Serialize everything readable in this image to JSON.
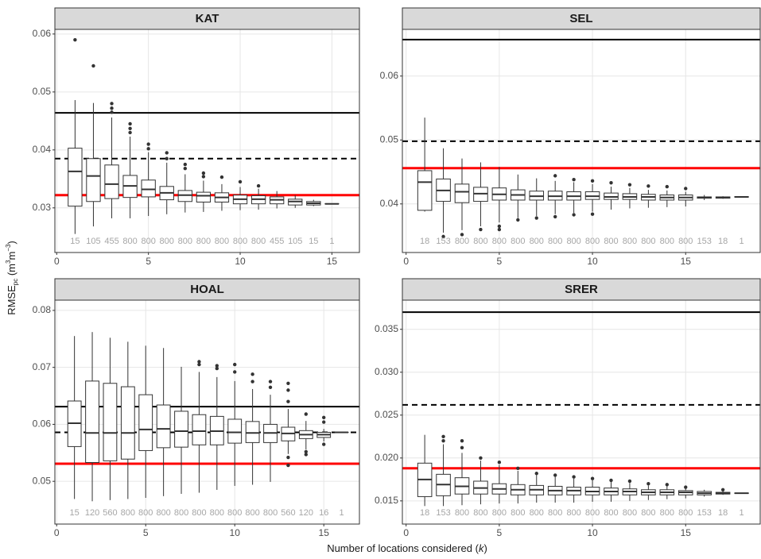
{
  "axis_labels": {
    "x_main": "Number of locations considered (",
    "x_var": "k",
    "x_close": ")",
    "y_main": "RMSE",
    "y_sub": "pc",
    "y_open": " (m",
    "y_exp1": "3",
    "y_mid": "m",
    "y_exp2": "−3",
    "y_close": ")"
  },
  "chart_data": [
    {
      "type": "boxplot",
      "title": "KAT",
      "xlim": [
        -0.1,
        16.5
      ],
      "xticks": [
        0,
        5,
        10,
        15
      ],
      "ylim": [
        0.0223,
        0.0608
      ],
      "yticks": [
        0.03,
        0.04,
        0.05,
        0.06
      ],
      "grid": true,
      "x": [
        1,
        2,
        3,
        4,
        5,
        6,
        7,
        8,
        9,
        10,
        11,
        12,
        13,
        14,
        15
      ],
      "counts": [
        15,
        105,
        455,
        800,
        800,
        800,
        800,
        800,
        800,
        800,
        800,
        455,
        105,
        15,
        1
      ],
      "low": [
        0.0255,
        0.0268,
        0.0282,
        0.0282,
        0.0286,
        0.0289,
        0.0292,
        0.0293,
        0.0295,
        0.0296,
        0.0297,
        0.0299,
        0.03,
        0.0303,
        0.0307
      ],
      "q1": [
        0.0303,
        0.0311,
        0.0316,
        0.0318,
        0.0319,
        0.0314,
        0.0311,
        0.031,
        0.031,
        0.0307,
        0.0307,
        0.0307,
        0.0305,
        0.0305,
        0.0307
      ],
      "median": [
        0.0363,
        0.0355,
        0.0341,
        0.0338,
        0.0332,
        0.0326,
        0.0322,
        0.0321,
        0.0318,
        0.0315,
        0.0315,
        0.0314,
        0.0311,
        0.0308,
        0.0307
      ],
      "q3": [
        0.0403,
        0.0385,
        0.0374,
        0.0356,
        0.0348,
        0.0337,
        0.033,
        0.0327,
        0.0326,
        0.0322,
        0.0321,
        0.0319,
        0.0315,
        0.0311,
        0.0307
      ],
      "high": [
        0.0486,
        0.0481,
        0.0456,
        0.0423,
        0.0396,
        0.0378,
        0.0358,
        0.0347,
        0.0341,
        0.0336,
        0.0333,
        0.0329,
        0.0322,
        0.0314,
        0.0307
      ],
      "outliers": [
        [
          0.059
        ],
        [
          0.0545
        ],
        [
          0.0465,
          0.0472,
          0.048
        ],
        [
          0.043,
          0.0437,
          0.0445
        ],
        [
          0.0402,
          0.041
        ],
        [
          0.0385,
          0.0395
        ],
        [
          0.0368,
          0.0375
        ],
        [
          0.0354,
          0.036
        ],
        [
          0.0353
        ],
        [
          0.0345
        ],
        [
          0.0338
        ],
        [],
        [],
        [],
        []
      ],
      "hlines": [
        {
          "value": 0.0464,
          "style": "solid",
          "color": "#000000"
        },
        {
          "value": 0.0385,
          "style": "dashed",
          "color": "#000000"
        },
        {
          "value": 0.0322,
          "style": "solid",
          "color": "#ff0000"
        }
      ]
    },
    {
      "type": "boxplot",
      "title": "SEL",
      "xlim": [
        -0.2,
        19
      ],
      "xticks": [
        0,
        5,
        10,
        15
      ],
      "ylim": [
        0.0324,
        0.0673
      ],
      "yticks": [
        0.04,
        0.05,
        0.06
      ],
      "grid": true,
      "x": [
        1,
        2,
        3,
        4,
        5,
        6,
        7,
        8,
        9,
        10,
        11,
        12,
        13,
        14,
        15,
        16,
        17,
        18
      ],
      "counts": [
        18,
        153,
        800,
        800,
        800,
        800,
        800,
        800,
        800,
        800,
        800,
        800,
        800,
        800,
        800,
        153,
        18,
        1
      ],
      "low": [
        0.0388,
        0.0355,
        0.0359,
        0.0365,
        0.0371,
        0.0378,
        0.0381,
        0.0384,
        0.0386,
        0.0388,
        0.0391,
        0.0393,
        0.0394,
        0.0395,
        0.0396,
        0.0406,
        0.0408,
        0.0411
      ],
      "q1": [
        0.039,
        0.0404,
        0.0402,
        0.0404,
        0.0406,
        0.0406,
        0.0406,
        0.0406,
        0.0406,
        0.0407,
        0.0407,
        0.0407,
        0.0406,
        0.0406,
        0.0406,
        0.0409,
        0.0409,
        0.0411
      ],
      "median": [
        0.0434,
        0.0421,
        0.0419,
        0.0416,
        0.0415,
        0.0414,
        0.0412,
        0.0412,
        0.0412,
        0.0412,
        0.0411,
        0.0411,
        0.0411,
        0.041,
        0.041,
        0.041,
        0.041,
        0.0411
      ],
      "q3": [
        0.0452,
        0.0439,
        0.0431,
        0.0426,
        0.0425,
        0.0422,
        0.042,
        0.042,
        0.0419,
        0.0419,
        0.0417,
        0.0416,
        0.0415,
        0.0414,
        0.0414,
        0.0411,
        0.0411,
        0.0411
      ],
      "high": [
        0.0535,
        0.0487,
        0.0471,
        0.0465,
        0.0458,
        0.0446,
        0.044,
        0.0436,
        0.0434,
        0.0431,
        0.0427,
        0.0425,
        0.0422,
        0.0421,
        0.0419,
        0.0414,
        0.0412,
        0.0411
      ],
      "outliers": [
        [],
        [
          0.0349
        ],
        [
          0.0352
        ],
        [
          0.036
        ],
        [
          0.036,
          0.0365
        ],
        [
          0.0375
        ],
        [
          0.0378
        ],
        [
          0.038,
          0.0444
        ],
        [
          0.0383,
          0.0438
        ],
        [
          0.0384,
          0.0436
        ],
        [
          0.0433
        ],
        [
          0.043
        ],
        [
          0.0428
        ],
        [
          0.0427
        ],
        [
          0.0424
        ],
        [],
        [],
        []
      ],
      "hlines": [
        {
          "value": 0.0657,
          "style": "solid",
          "color": "#000000"
        },
        {
          "value": 0.0498,
          "style": "dashed",
          "color": "#000000"
        },
        {
          "value": 0.0456,
          "style": "solid",
          "color": "#ff0000"
        }
      ]
    },
    {
      "type": "boxplot",
      "title": "HOAL",
      "xlim": [
        -0.1,
        17
      ],
      "xticks": [
        0,
        5,
        10,
        15
      ],
      "ylim": [
        0.0425,
        0.0818
      ],
      "yticks": [
        0.05,
        0.06,
        0.07,
        0.08
      ],
      "grid": true,
      "x": [
        1,
        2,
        3,
        4,
        5,
        6,
        7,
        8,
        9,
        10,
        11,
        12,
        13,
        14,
        15,
        16
      ],
      "counts": [
        15,
        120,
        560,
        800,
        800,
        800,
        800,
        800,
        800,
        800,
        800,
        800,
        560,
        120,
        16,
        1
      ],
      "low": [
        0.0469,
        0.0465,
        0.0467,
        0.0469,
        0.0471,
        0.0474,
        0.0478,
        0.048,
        0.0485,
        0.0492,
        0.0494,
        0.0499,
        0.0548,
        0.0556,
        0.057,
        0.0586
      ],
      "q1": [
        0.0561,
        0.0533,
        0.0536,
        0.0539,
        0.0554,
        0.0559,
        0.056,
        0.0564,
        0.0564,
        0.0567,
        0.0568,
        0.0568,
        0.0571,
        0.0575,
        0.0577,
        0.0586
      ],
      "median": [
        0.0602,
        0.0585,
        0.0585,
        0.0585,
        0.0591,
        0.0592,
        0.0588,
        0.0588,
        0.0588,
        0.0586,
        0.0585,
        0.0585,
        0.0584,
        0.0582,
        0.0582,
        0.0586
      ],
      "q3": [
        0.0641,
        0.0676,
        0.0672,
        0.0666,
        0.0652,
        0.0634,
        0.0623,
        0.0617,
        0.0614,
        0.0609,
        0.0605,
        0.06,
        0.0595,
        0.0589,
        0.0586,
        0.0586
      ],
      "high": [
        0.0755,
        0.0762,
        0.0752,
        0.0745,
        0.0738,
        0.0734,
        0.0701,
        0.0692,
        0.0683,
        0.0676,
        0.0662,
        0.0652,
        0.0627,
        0.0606,
        0.0592,
        0.0586
      ],
      "outliers": [
        [],
        [],
        [],
        [],
        [],
        [],
        [],
        [
          0.0705,
          0.071
        ],
        [
          0.0698,
          0.0703
        ],
        [
          0.0692,
          0.0705
        ],
        [
          0.0675,
          0.0688
        ],
        [
          0.0665,
          0.0675
        ],
        [
          0.064,
          0.066,
          0.0672,
          0.0528,
          0.0542
        ],
        [
          0.0618,
          0.0547,
          0.0552
        ],
        [
          0.0604,
          0.0612,
          0.0565
        ],
        []
      ],
      "hlines": [
        {
          "value": 0.0631,
          "style": "solid",
          "color": "#000000"
        },
        {
          "value": 0.0586,
          "style": "dashed",
          "color": "#000000"
        },
        {
          "value": 0.0531,
          "style": "solid",
          "color": "#ff0000"
        }
      ]
    },
    {
      "type": "boxplot",
      "title": "SRER",
      "xlim": [
        -0.2,
        19
      ],
      "xticks": [
        0,
        5,
        10,
        15
      ],
      "ylim": [
        0.0123,
        0.0384
      ],
      "yticks": [
        0.015,
        {
          "value": 0.02,
          "label": "0.020"
        },
        0.025,
        {
          "value": 0.03,
          "label": "0.030"
        },
        0.035
      ],
      "grid": true,
      "x": [
        1,
        2,
        3,
        4,
        5,
        6,
        7,
        8,
        9,
        10,
        11,
        12,
        13,
        14,
        15,
        16,
        17,
        18
      ],
      "counts": [
        18,
        153,
        800,
        800,
        800,
        800,
        800,
        800,
        800,
        800,
        800,
        800,
        800,
        800,
        800,
        153,
        18,
        1
      ],
      "low": [
        0.0144,
        0.0144,
        0.0145,
        0.0146,
        0.0147,
        0.0147,
        0.0148,
        0.0148,
        0.0148,
        0.0149,
        0.0149,
        0.015,
        0.0151,
        0.0152,
        0.0153,
        0.0155,
        0.0157,
        0.0159
      ],
      "q1": [
        0.0155,
        0.0156,
        0.0158,
        0.0158,
        0.0158,
        0.0157,
        0.0157,
        0.0157,
        0.0157,
        0.0157,
        0.0157,
        0.0157,
        0.0157,
        0.0157,
        0.0157,
        0.0157,
        0.0158,
        0.0159
      ],
      "median": [
        0.0175,
        0.0169,
        0.0167,
        0.0165,
        0.0164,
        0.0163,
        0.0163,
        0.0162,
        0.0162,
        0.0161,
        0.0161,
        0.0161,
        0.016,
        0.016,
        0.016,
        0.0159,
        0.0159,
        0.0159
      ],
      "q3": [
        0.0194,
        0.0181,
        0.0177,
        0.0173,
        0.017,
        0.0169,
        0.0168,
        0.0167,
        0.0166,
        0.0166,
        0.0165,
        0.0164,
        0.0163,
        0.0163,
        0.0162,
        0.0161,
        0.016,
        0.0159
      ],
      "high": [
        0.0227,
        0.0216,
        0.0206,
        0.0197,
        0.0192,
        0.0185,
        0.018,
        0.0178,
        0.0176,
        0.0174,
        0.0172,
        0.0171,
        0.0168,
        0.0167,
        0.0165,
        0.0163,
        0.0162,
        0.0159
      ],
      "outliers": [
        [],
        [
          0.022,
          0.0225
        ],
        [
          0.0212,
          0.022
        ],
        [
          0.02
        ],
        [
          0.0195
        ],
        [
          0.0188
        ],
        [
          0.0182
        ],
        [
          0.018
        ],
        [
          0.0178
        ],
        [
          0.0176
        ],
        [
          0.0174
        ],
        [
          0.0173
        ],
        [
          0.017
        ],
        [
          0.0169
        ],
        [
          0.0166
        ],
        [],
        [
          0.0163
        ],
        []
      ],
      "hlines": [
        {
          "value": 0.037,
          "style": "solid",
          "color": "#000000"
        },
        {
          "value": 0.0262,
          "style": "dashed",
          "color": "#000000"
        },
        {
          "value": 0.0188,
          "style": "solid",
          "color": "#ff0000"
        }
      ]
    }
  ]
}
